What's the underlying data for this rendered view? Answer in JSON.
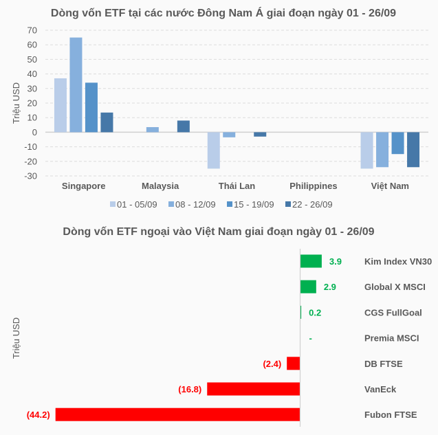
{
  "chart_data": [
    {
      "type": "bar",
      "title": "Dòng vốn ETF tại các nước Đông Nam Á giai đoạn ngày 01 - 26/09",
      "xlabel": "",
      "ylabel": "Triệu USD",
      "ylim": [
        -30,
        70
      ],
      "yticks": [
        70,
        60,
        50,
        40,
        30,
        20,
        10,
        0,
        -10,
        -20,
        -30
      ],
      "grid": true,
      "legend_position": "bottom",
      "categories": [
        "Singapore",
        "Malaysia",
        "Thái Lan",
        "Philippines",
        "Việt Nam"
      ],
      "series": [
        {
          "name": "01 - 05/09",
          "color": "#b9cde9",
          "values": [
            37,
            0,
            -25,
            0,
            -25
          ]
        },
        {
          "name": "08 - 12/09",
          "color": "#86b0dd",
          "values": [
            65,
            3.5,
            -3.5,
            0,
            -24
          ]
        },
        {
          "name": "15 - 19/09",
          "color": "#5592c9",
          "values": [
            34,
            0,
            0,
            0,
            -15
          ]
        },
        {
          "name": "22 - 26/09",
          "color": "#4678a8",
          "values": [
            13.5,
            8,
            -3,
            0,
            -24
          ]
        }
      ]
    },
    {
      "type": "bar",
      "orientation": "horizontal",
      "title": "Dòng vốn ETF ngoại vào Việt Nam giai đoạn ngày 01 - 26/09",
      "xlabel": "",
      "ylabel": "Triệu USD",
      "positive_color": "#00b050",
      "negative_color": "#ff0000",
      "categories": [
        "Kim Index VN30",
        "Global X MSCI",
        "CGS FullGoal",
        "Premia MSCI",
        "DB FTSE",
        "VanEck",
        "Fubon FTSE"
      ],
      "values": [
        3.9,
        2.9,
        0.2,
        0,
        -2.4,
        -16.8,
        -44.2
      ],
      "data_labels": [
        "3.9",
        "2.9",
        "0.2",
        "-",
        "(2.4)",
        "(16.8)",
        "(44.2)"
      ]
    }
  ]
}
